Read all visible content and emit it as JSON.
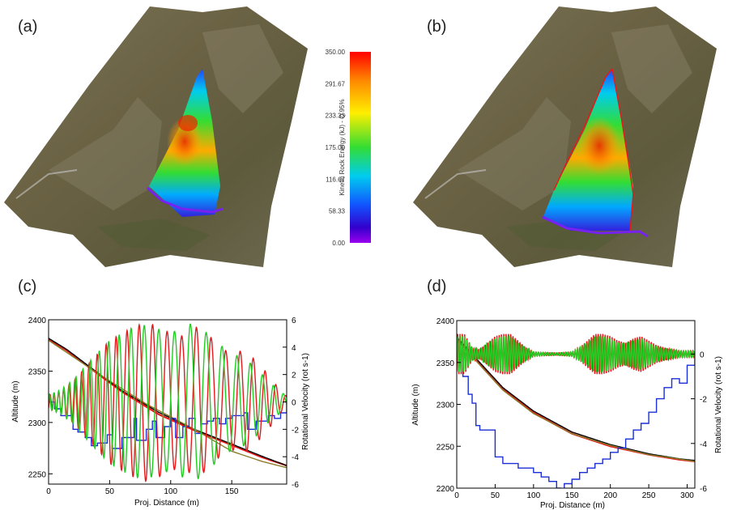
{
  "panel_labels": {
    "a": "(a)",
    "b": "(b)",
    "c": "(c)",
    "d": "(d)"
  },
  "colorbar": {
    "label": "Kinetic Rock Energy (kJ) - Q 95%",
    "ticks": [
      "350.00",
      "291.67",
      "233.33",
      "175.00",
      "116.67",
      "58.33",
      "0.00"
    ],
    "range": [
      0,
      350
    ],
    "colors": [
      "#ff0000",
      "#ff8800",
      "#ffee00",
      "#33dd33",
      "#00ccee",
      "#1155ff",
      "#3300cc",
      "#9900ee"
    ]
  },
  "colors": {
    "red": "#e41a1c",
    "green": "#22cc22",
    "blue": "#1a2fd6",
    "black": "#000000",
    "olive": "#8a7d2a"
  },
  "chart_data": [
    {
      "type": "line",
      "panel": "(c)",
      "xlabel": "Proj. Distance (m)",
      "ylabel": "Altitude (m)",
      "y2label": "Rotational Velocity  (rot s-1)",
      "xlim": [
        0,
        195
      ],
      "ylim": [
        2240,
        2400
      ],
      "y2lim": [
        -6,
        6
      ],
      "xticks": [
        "0",
        "50",
        "100",
        "150"
      ],
      "yticks": [
        "2250",
        "2300",
        "2350",
        "2400"
      ],
      "y2ticks": [
        "-6",
        "-4",
        "-2",
        "0",
        "2",
        "4",
        "6"
      ],
      "series": [
        {
          "color": "#e41a1c",
          "axis": "y",
          "x": [
            0,
            15,
            35,
            60,
            90,
            120,
            150,
            175,
            195
          ],
          "values": [
            2381,
            2370,
            2352,
            2330,
            2308,
            2292,
            2278,
            2266,
            2258
          ]
        },
        {
          "color": "#000000",
          "axis": "y",
          "x": [
            0,
            15,
            35,
            60,
            90,
            120,
            150,
            175,
            195
          ],
          "values": [
            2382,
            2371,
            2353,
            2331,
            2310,
            2293,
            2279,
            2267,
            2258
          ]
        },
        {
          "color": "#8a7d2a",
          "axis": "y",
          "x": [
            0,
            40,
            80,
            120,
            150,
            175,
            195
          ],
          "values": [
            2380,
            2348,
            2318,
            2293,
            2272,
            2262,
            2256
          ]
        },
        {
          "color": "#1a2fd6",
          "axis": "y2",
          "x": [
            0,
            5,
            10,
            20,
            24,
            30,
            35,
            40,
            48,
            52,
            60,
            70,
            72,
            80,
            85,
            88,
            95,
            100,
            104,
            110,
            115,
            120,
            125,
            130,
            135,
            140,
            145,
            150,
            160,
            163,
            170,
            180,
            185,
            190,
            195
          ],
          "values": [
            0,
            -0.5,
            -1,
            -2,
            -2.2,
            -2.6,
            -3.2,
            -3,
            -2.4,
            -3.4,
            -2.6,
            -1.2,
            -2.8,
            -2,
            -1.4,
            -2.6,
            -1.8,
            -1.2,
            -2.6,
            -1.8,
            -1.2,
            -2.3,
            -1.6,
            -1.4,
            -1.2,
            -1.6,
            -1.2,
            -1,
            -0.8,
            -2,
            -1.4,
            -1,
            -1.2,
            -0.8,
            0
          ]
        },
        {
          "color": "#e41a1c",
          "axis": "y2",
          "x": [
            0,
            10,
            20,
            30,
            40,
            50,
            60,
            70,
            80,
            90,
            100,
            110,
            120,
            130,
            140,
            150,
            160,
            170,
            180,
            190,
            195
          ],
          "amplitude": [
            0.5,
            0.8,
            1.5,
            2.5,
            3.5,
            4.5,
            5,
            5.5,
            5.8,
            5.5,
            5,
            4.8,
            5.5,
            5,
            4,
            3.5,
            3.8,
            3,
            2,
            0.8,
            0.4
          ],
          "period": [
            3,
            4,
            5,
            6,
            7,
            8,
            9,
            10,
            11,
            12,
            12,
            12,
            12,
            12,
            12,
            12,
            11,
            10,
            9,
            8,
            8
          ]
        },
        {
          "color": "#22cc22",
          "axis": "y2",
          "x": [
            0,
            10,
            20,
            30,
            40,
            50,
            60,
            70,
            80,
            90,
            100,
            110,
            120,
            130,
            140,
            150,
            160,
            170,
            180,
            190,
            195
          ],
          "amplitude": [
            0.5,
            0.9,
            1.6,
            2.6,
            3.6,
            4.5,
            5,
            5.5,
            5.6,
            5.3,
            5,
            5.5,
            5.8,
            5,
            4.2,
            3.5,
            3.2,
            2.5,
            1.5,
            0.8,
            0.4
          ],
          "period": [
            3.4,
            4.2,
            5.2,
            6.2,
            7.2,
            8.2,
            9.4,
            10.5,
            11.5,
            12.5,
            13,
            13,
            13,
            13,
            13,
            12,
            11,
            10,
            9,
            8,
            8
          ]
        }
      ]
    },
    {
      "type": "line",
      "panel": "(d)",
      "xlabel": "Proj. Distance (m)",
      "ylabel": "Altitude (m)",
      "y2label": "Rotational Velocity  (rot s-1)",
      "xlim": [
        0,
        310
      ],
      "ylim": [
        2200,
        2400
      ],
      "y2lim": [
        -6,
        1.5
      ],
      "xticks": [
        "0",
        "50",
        "100",
        "150",
        "200",
        "250",
        "300"
      ],
      "yticks": [
        "2200",
        "2250",
        "2300",
        "2350",
        "2400"
      ],
      "y2ticks": [
        "-6",
        "-4",
        "-2",
        "0"
      ],
      "series": [
        {
          "color": "#e41a1c",
          "axis": "y",
          "x": [
            0,
            10,
            30,
            60,
            100,
            150,
            200,
            250,
            290,
            310
          ],
          "values": [
            2378,
            2368,
            2348,
            2318,
            2290,
            2265,
            2250,
            2240,
            2234,
            2232
          ]
        },
        {
          "color": "#000000",
          "axis": "y",
          "x": [
            0,
            10,
            30,
            60,
            100,
            150,
            200,
            250,
            290,
            310
          ],
          "values": [
            2380,
            2370,
            2350,
            2320,
            2292,
            2267,
            2252,
            2241,
            2235,
            2233
          ]
        },
        {
          "color": "#8a7d2a",
          "axis": "y",
          "x": [
            0,
            30,
            60,
            100,
            150,
            200,
            250,
            310
          ],
          "values": [
            2377,
            2347,
            2317,
            2289,
            2265,
            2251,
            2240,
            2232
          ]
        },
        {
          "color": "#1a2fd6",
          "axis": "y2",
          "x": [
            0,
            8,
            15,
            20,
            25,
            30,
            40,
            50,
            60,
            80,
            100,
            110,
            120,
            130,
            135,
            140,
            150,
            160,
            170,
            180,
            190,
            200,
            210,
            220,
            230,
            240,
            250,
            260,
            270,
            280,
            290,
            300,
            310
          ],
          "values": [
            0,
            -1,
            -1.8,
            -2.2,
            -3.2,
            -3.4,
            -3.4,
            -4.6,
            -4.9,
            -5.1,
            -5.3,
            -5.5,
            -5.7,
            -6,
            -6.3,
            -5.8,
            -5.6,
            -5.3,
            -5.1,
            -4.9,
            -4.7,
            -4.4,
            -4.2,
            -3.8,
            -3.4,
            -3.1,
            -2.6,
            -2.0,
            -1.5,
            -1.1,
            -1.3,
            -0.5,
            0
          ]
        },
        {
          "color": "#e41a1c",
          "axis": "y2",
          "x": [
            0,
            10,
            20,
            30,
            40,
            50,
            60,
            70,
            80,
            90,
            100,
            110,
            130,
            150,
            160,
            170,
            180,
            190,
            200,
            210,
            220,
            230,
            240,
            250,
            260,
            270,
            280,
            290,
            300,
            310
          ],
          "amplitude": [
            0.9,
            0.9,
            0.3,
            0.2,
            0.5,
            0.8,
            0.9,
            0.9,
            0.6,
            0.3,
            0.1,
            0.08,
            0.05,
            0.1,
            0.3,
            0.6,
            0.9,
            0.9,
            0.8,
            0.6,
            0.5,
            0.7,
            0.8,
            0.6,
            0.4,
            0.3,
            0.2,
            0.15,
            0.15,
            0.15
          ],
          "period": [
            3,
            3,
            3,
            3,
            3,
            3,
            3,
            3,
            3,
            3,
            3,
            3,
            3,
            3,
            3,
            3,
            3,
            3,
            3,
            3,
            3,
            3,
            3,
            3,
            3,
            3,
            3,
            3,
            3,
            3
          ]
        },
        {
          "color": "#22cc22",
          "axis": "y2",
          "x": [
            0,
            10,
            20,
            30,
            40,
            50,
            60,
            70,
            80,
            90,
            100,
            110,
            130,
            150,
            160,
            170,
            180,
            190,
            200,
            210,
            220,
            230,
            240,
            250,
            260,
            270,
            280,
            290,
            300,
            310
          ],
          "amplitude": [
            0.8,
            0.8,
            0.3,
            0.2,
            0.5,
            0.7,
            0.8,
            0.8,
            0.5,
            0.3,
            0.1,
            0.08,
            0.05,
            0.1,
            0.3,
            0.5,
            0.8,
            0.8,
            0.7,
            0.5,
            0.5,
            0.6,
            0.7,
            0.5,
            0.35,
            0.25,
            0.2,
            0.15,
            0.15,
            0.15
          ],
          "period": [
            3.2,
            3.2,
            3.2,
            3.2,
            3.2,
            3.2,
            3.2,
            3.2,
            3.2,
            3.2,
            3.2,
            3.2,
            3.2,
            3.2,
            3.2,
            3.2,
            3.2,
            3.2,
            3.2,
            3.2,
            3.2,
            3.2,
            3.2,
            3.2,
            3.2,
            3.2,
            3.2,
            3.2,
            3.2,
            3.2
          ]
        }
      ]
    }
  ]
}
